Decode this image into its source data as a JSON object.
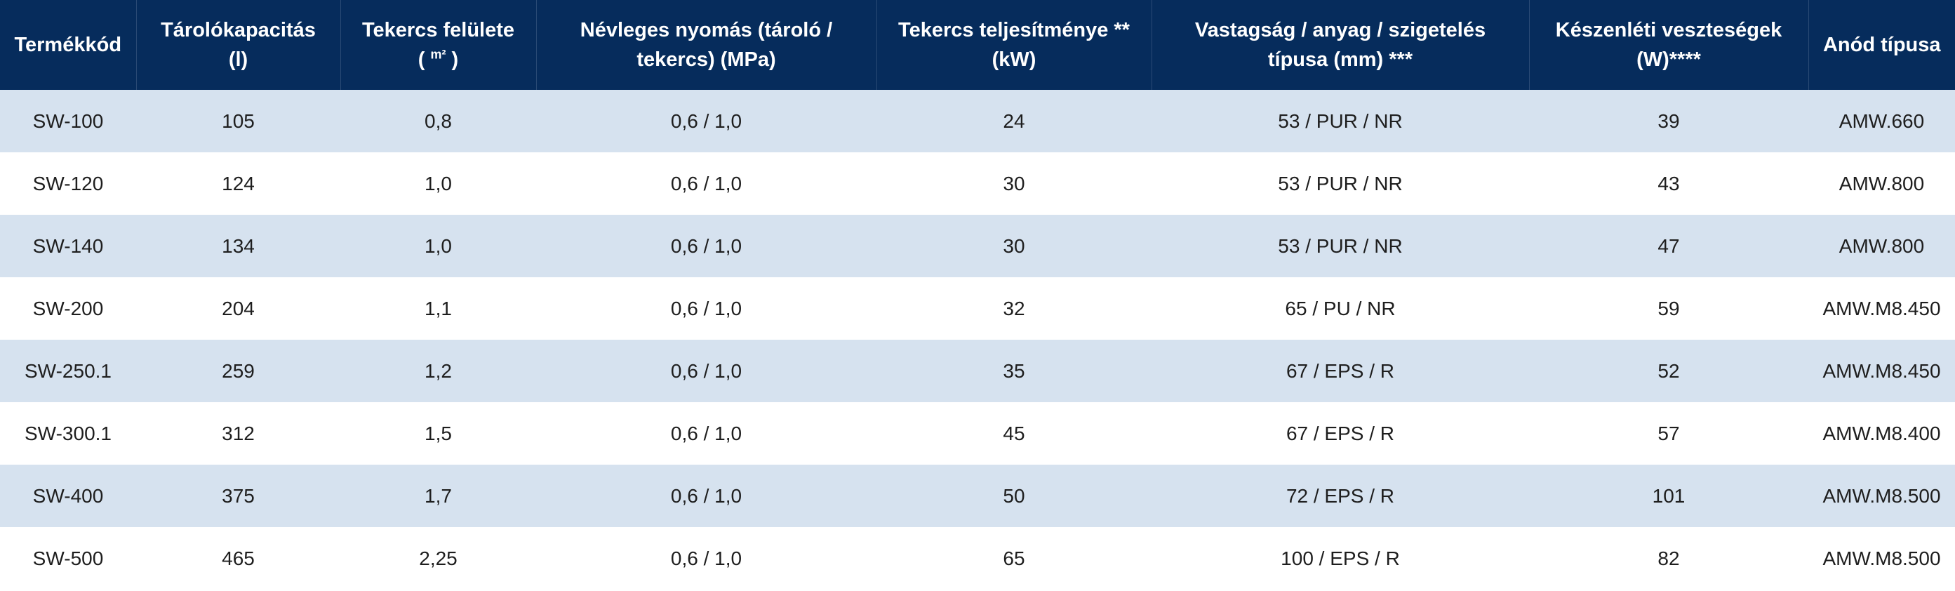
{
  "colors": {
    "header_bg": "#062c5c",
    "header_text": "#ffffff",
    "row_stripe": "#d6e2ef",
    "row_plain": "#ffffff"
  },
  "headers": [
    {
      "line1": "Termékkód",
      "line2": ""
    },
    {
      "line1": "Tárolókapacitás",
      "line2": "(l)"
    },
    {
      "line1": "Tekercs felülete",
      "line2_pre": "( ",
      "line2_sup": "m²",
      "line2_post": " )"
    },
    {
      "line1": "Névleges nyomás (tároló /",
      "line2": "tekercs) (MPa)"
    },
    {
      "line1": "Tekercs teljesítménye **",
      "line2": "(kW)"
    },
    {
      "line1": "Vastagság / anyag / szigetelés",
      "line2": "típusa (mm) ***"
    },
    {
      "line1": "Készenléti veszteségek",
      "line2": "(W)****"
    },
    {
      "line1": "Anód típusa",
      "line2": ""
    }
  ],
  "rows": [
    [
      "SW-100",
      "105",
      "0,8",
      "0,6 / 1,0",
      "24",
      "53 / PUR / NR",
      "39",
      "AMW.660"
    ],
    [
      "SW-120",
      "124",
      "1,0",
      "0,6 / 1,0",
      "30",
      "53 / PUR / NR",
      "43",
      "AMW.800"
    ],
    [
      "SW-140",
      "134",
      "1,0",
      "0,6 / 1,0",
      "30",
      "53 / PUR / NR",
      "47",
      "AMW.800"
    ],
    [
      "SW-200",
      "204",
      "1,1",
      "0,6 / 1,0",
      "32",
      "65 / PU / NR",
      "59",
      "AMW.M8.450"
    ],
    [
      "SW-250.1",
      "259",
      "1,2",
      "0,6 / 1,0",
      "35",
      "67 / EPS / R",
      "52",
      "AMW.M8.450"
    ],
    [
      "SW-300.1",
      "312",
      "1,5",
      "0,6 / 1,0",
      "45",
      "67 / EPS / R",
      "57",
      "AMW.M8.400"
    ],
    [
      "SW-400",
      "375",
      "1,7",
      "0,6 / 1,0",
      "50",
      "72 / EPS / R",
      "101",
      "AMW.M8.500"
    ],
    [
      "SW-500",
      "465",
      "2,25",
      "0,6 / 1,0",
      "65",
      "100 / EPS / R",
      "82",
      "AMW.M8.500"
    ]
  ]
}
